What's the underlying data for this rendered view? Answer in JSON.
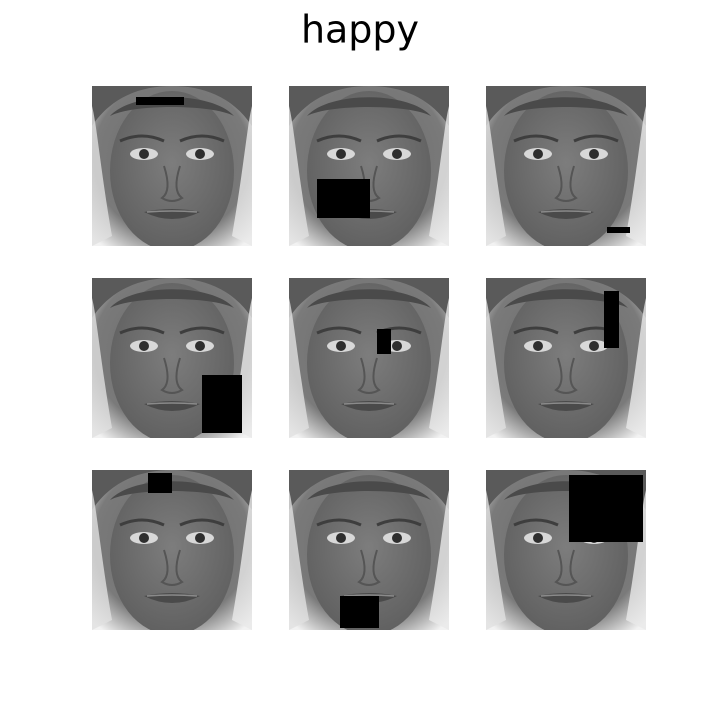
{
  "title": "happy"
}
